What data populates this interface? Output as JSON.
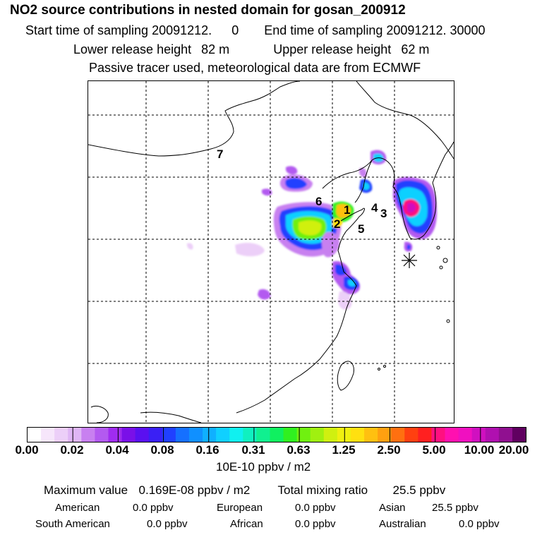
{
  "header": {
    "title": "NO2 source contributions in nested domain for gosan_200912",
    "start_label": "Start time of sampling",
    "start_value": "20091212.",
    "start_hour": "0",
    "end_label": "End time of sampling",
    "end_value": "20091212. 30000",
    "lower_label": "Lower release height",
    "lower_value": "82 m",
    "upper_label": "Upper release height",
    "upper_value": "62 m",
    "note": "Passive tracer used, meteorological data are from ECMWF"
  },
  "sources": [
    "1",
    "2",
    "3",
    "4",
    "5",
    "6",
    "7"
  ],
  "colorbar": {
    "ticks": [
      "0.00",
      "0.02",
      "0.04",
      "0.08",
      "0.16",
      "0.31",
      "0.63",
      "1.25",
      "2.50",
      "5.00",
      "10.00",
      "20.00"
    ],
    "colors": [
      "#ffffff",
      "#f6e6fb",
      "#eccff8",
      "#dfb6f5",
      "#c880f0",
      "#b35af0",
      "#a02cf0",
      "#7a10e8",
      "#5a10f0",
      "#3a20f5",
      "#2040ff",
      "#1570ff",
      "#1090ff",
      "#10b0ff",
      "#10d0ff",
      "#10f0f0",
      "#10f0c0",
      "#10f090",
      "#10f060",
      "#30f020",
      "#70f010",
      "#a0f010",
      "#d0f010",
      "#f0f010",
      "#ffe010",
      "#ffc010",
      "#ffa010",
      "#ff7010",
      "#ff4010",
      "#ff2020",
      "#ff1080",
      "#ff10b0",
      "#f010c0",
      "#d010c0",
      "#b010b0",
      "#901090",
      "#600060"
    ],
    "units": "10E-10 ppbv / m2"
  },
  "stats": {
    "max_label": "Maximum value",
    "max_value": "0.169E-08 ppbv / m2",
    "total_label": "Total mixing ratio",
    "total_value": "25.5 ppbv"
  },
  "regions": [
    {
      "name": "American",
      "value": "0.0 ppbv"
    },
    {
      "name": "European",
      "value": "0.0 ppbv"
    },
    {
      "name": "Asian",
      "value": "25.5 ppbv"
    },
    {
      "name": "South American",
      "value": "0.0 ppbv"
    },
    {
      "name": "African",
      "value": "0.0 ppbv"
    },
    {
      "name": "Australian",
      "value": "0.0 ppbv"
    }
  ]
}
